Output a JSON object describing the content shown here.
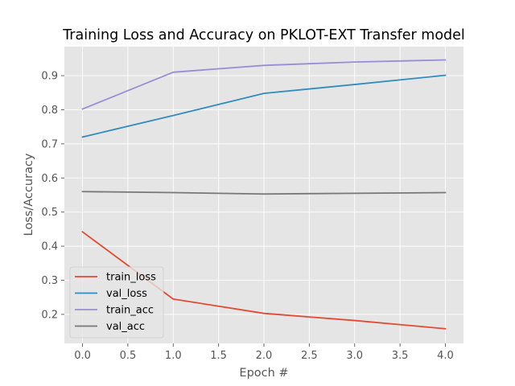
{
  "chart_data": {
    "type": "line",
    "title": "Training Loss and Accuracy on PKLOT-EXT Transfer model",
    "xlabel": "Epoch #",
    "ylabel": "Loss/Accuracy",
    "x": [
      0,
      1,
      2,
      3,
      4
    ],
    "xlim": [
      -0.2,
      4.2
    ],
    "ylim": [
      0.115,
      0.985
    ],
    "xticks": [
      0.0,
      0.5,
      1.0,
      1.5,
      2.0,
      2.5,
      3.0,
      3.5,
      4.0
    ],
    "xtick_labels": [
      "0.0",
      "0.5",
      "1.0",
      "1.5",
      "2.0",
      "2.5",
      "3.0",
      "3.5",
      "4.0"
    ],
    "yticks": [
      0.2,
      0.3,
      0.4,
      0.5,
      0.6,
      0.7,
      0.8,
      0.9
    ],
    "ytick_labels": [
      "0.2",
      "0.3",
      "0.4",
      "0.5",
      "0.6",
      "0.7",
      "0.8",
      "0.9"
    ],
    "grid": true,
    "legend_position": "lower-left",
    "style": "ggplot",
    "colors": {
      "axes_bg": "#E5E5E5",
      "grid": "#FFFFFF",
      "frame": "#FFFFFF"
    },
    "series": [
      {
        "name": "train_loss",
        "color": "#E24A33",
        "values": [
          0.442,
          0.245,
          0.203,
          0.182,
          0.158
        ]
      },
      {
        "name": "val_loss",
        "color": "#348ABD",
        "values": [
          0.72,
          0.783,
          0.848,
          0.874,
          0.901
        ]
      },
      {
        "name": "train_acc",
        "color": "#988ED5",
        "values": [
          0.802,
          0.91,
          0.93,
          0.94,
          0.946
        ]
      },
      {
        "name": "val_acc",
        "color": "#777777",
        "values": [
          0.56,
          0.557,
          0.553,
          0.555,
          0.557
        ]
      }
    ]
  }
}
